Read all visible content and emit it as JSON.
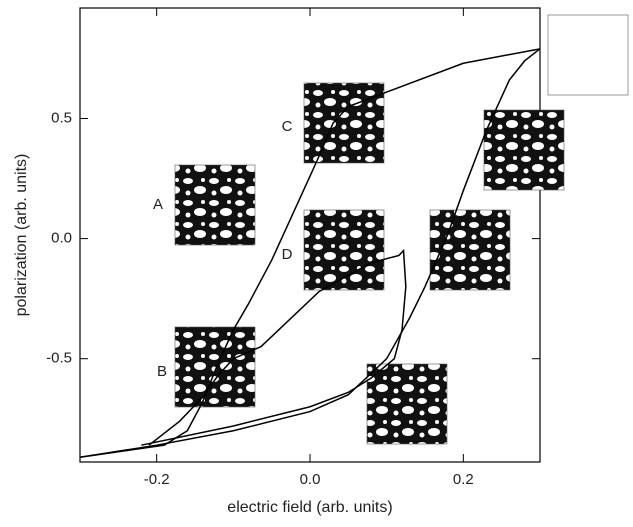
{
  "chart_data": {
    "type": "line",
    "xlabel": "electric field (arb. units)",
    "ylabel": "polarization (arb. units)",
    "xlim": [
      -0.3,
      0.3
    ],
    "ylim": [
      -0.93,
      0.96
    ],
    "xticks": [
      -0.2,
      {
        "value": 0,
        "label": "0.0"
      },
      0.2
    ],
    "yticks": [
      -0.5,
      {
        "value": 0,
        "label": "0.0"
      },
      0.5
    ],
    "annotations": [
      "A",
      "B",
      "C",
      "D"
    ],
    "series": [
      {
        "color": "#000000",
        "x": [
          -0.3,
          -0.2,
          -0.1,
          0.0,
          0.05,
          0.1,
          0.13,
          0.15,
          0.18,
          0.2,
          0.23,
          0.26,
          0.28,
          0.3
        ],
        "values": [
          -0.91,
          -0.86,
          -0.8,
          -0.72,
          -0.65,
          -0.5,
          -0.33,
          -0.2,
          0.02,
          0.2,
          0.45,
          0.66,
          0.74,
          0.79
        ]
      },
      {
        "color": "#000000",
        "x": [
          0.3,
          0.2,
          0.1,
          0.05,
          0.03,
          0.01,
          -0.02,
          -0.05,
          -0.08,
          -0.1,
          -0.12,
          -0.14,
          -0.16,
          -0.19,
          -0.3
        ],
        "values": [
          0.79,
          0.73,
          0.61,
          0.55,
          0.48,
          0.33,
          0.12,
          -0.09,
          -0.27,
          -0.38,
          -0.52,
          -0.68,
          -0.8,
          -0.86,
          -0.91
        ]
      },
      {
        "color": "#000000",
        "x": [
          -0.21,
          -0.17,
          -0.14,
          -0.12,
          -0.1,
          -0.064,
          0.012,
          0.08,
          0.116,
          0.122,
          0.125,
          0.12,
          0.11,
          0.08,
          0.05,
          0.0,
          -0.1,
          -0.22
        ],
        "values": [
          -0.86,
          -0.76,
          -0.66,
          -0.57,
          -0.5,
          -0.45,
          -0.22,
          -0.1,
          -0.07,
          -0.05,
          -0.2,
          -0.38,
          -0.5,
          -0.58,
          -0.64,
          -0.7,
          -0.78,
          -0.86
        ]
      }
    ]
  }
}
